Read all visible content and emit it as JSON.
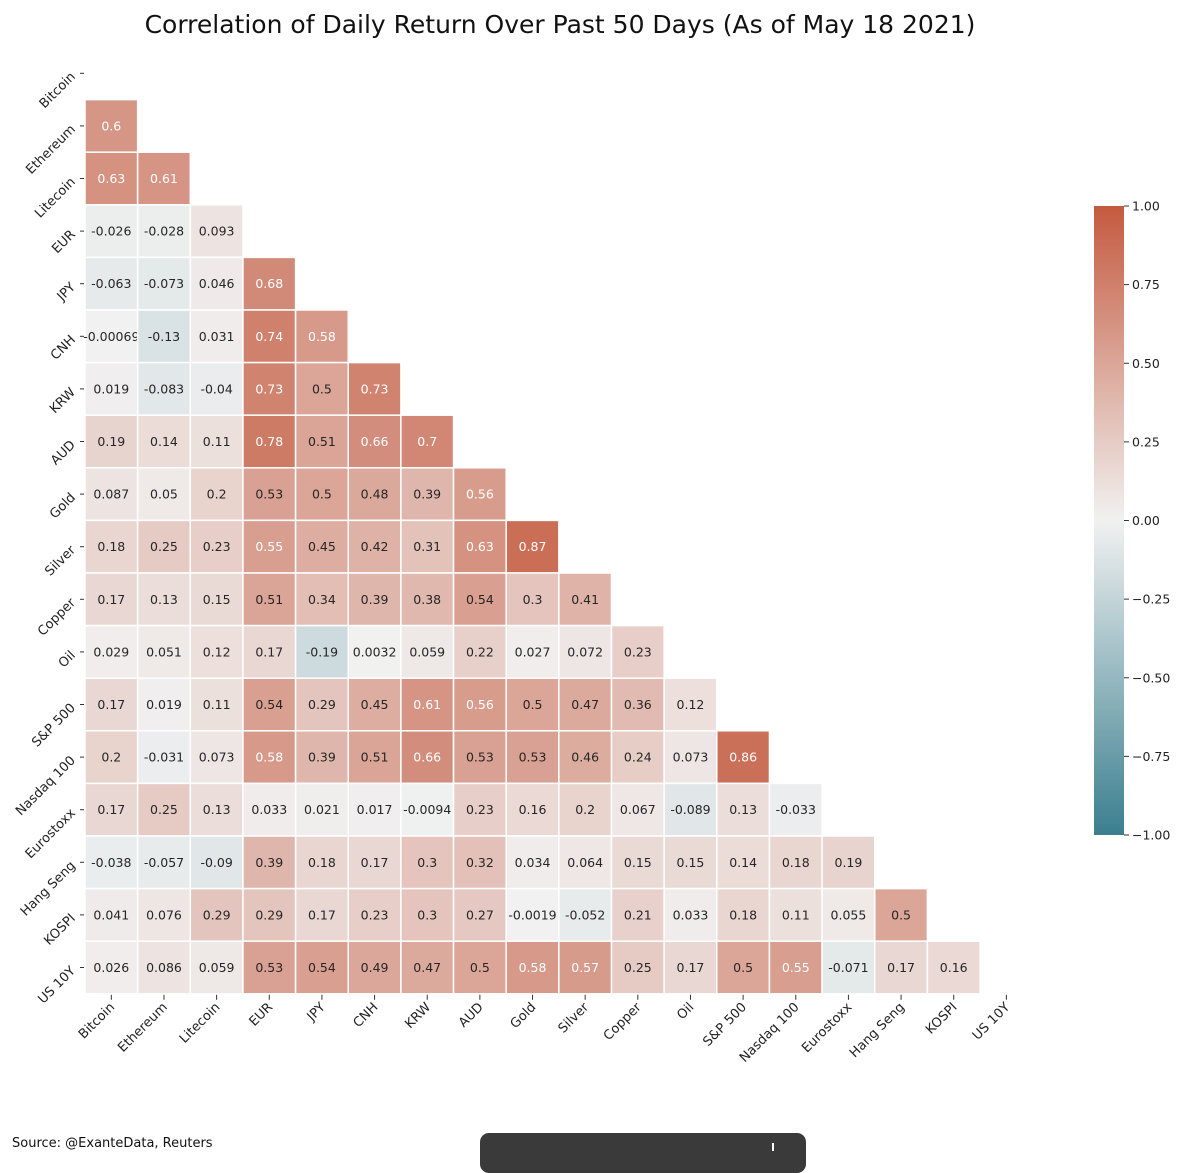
{
  "chart_data": {
    "type": "heatmap",
    "title": "Correlation of Daily Return Over Past 50 Days (As of May 18 2021)",
    "labels": [
      "Bitcoin",
      "Ethereum",
      "Litecoin",
      "EUR",
      "JPY",
      "CNH",
      "KRW",
      "AUD",
      "Gold",
      "Silver",
      "Copper",
      "Oil",
      "S&P 500",
      "Nasdaq 100",
      "Eurostoxx",
      "Hang Seng",
      "KOSPI",
      "US 10Y"
    ],
    "matrix_lower_triangle": [
      [],
      [
        "0.6"
      ],
      [
        "0.63",
        "0.61"
      ],
      [
        "-0.026",
        "-0.028",
        "0.093"
      ],
      [
        "-0.063",
        "-0.073",
        "0.046",
        "0.68"
      ],
      [
        "-0.00069",
        "-0.13",
        "0.031",
        "0.74",
        "0.58"
      ],
      [
        "0.019",
        "-0.083",
        "-0.04",
        "0.73",
        "0.5",
        "0.73"
      ],
      [
        "0.19",
        "0.14",
        "0.11",
        "0.78",
        "0.51",
        "0.66",
        "0.7"
      ],
      [
        "0.087",
        "0.05",
        "0.2",
        "0.53",
        "0.5",
        "0.48",
        "0.39",
        "0.56"
      ],
      [
        "0.18",
        "0.25",
        "0.23",
        "0.55",
        "0.45",
        "0.42",
        "0.31",
        "0.63",
        "0.87"
      ],
      [
        "0.17",
        "0.13",
        "0.15",
        "0.51",
        "0.34",
        "0.39",
        "0.38",
        "0.54",
        "0.3",
        "0.41"
      ],
      [
        "0.029",
        "0.051",
        "0.12",
        "0.17",
        "-0.19",
        "0.0032",
        "0.059",
        "0.22",
        "0.027",
        "0.072",
        "0.23"
      ],
      [
        "0.17",
        "0.019",
        "0.11",
        "0.54",
        "0.29",
        "0.45",
        "0.61",
        "0.56",
        "0.5",
        "0.47",
        "0.36",
        "0.12"
      ],
      [
        "0.2",
        "-0.031",
        "0.073",
        "0.58",
        "0.39",
        "0.51",
        "0.66",
        "0.53",
        "0.53",
        "0.46",
        "0.24",
        "0.073",
        "0.86"
      ],
      [
        "0.17",
        "0.25",
        "0.13",
        "0.033",
        "0.021",
        "0.017",
        "-0.0094",
        "0.23",
        "0.16",
        "0.2",
        "0.067",
        "-0.089",
        "0.13",
        "-0.033"
      ],
      [
        "-0.038",
        "-0.057",
        "-0.09",
        "0.39",
        "0.18",
        "0.17",
        "0.3",
        "0.32",
        "0.034",
        "0.064",
        "0.15",
        "0.15",
        "0.14",
        "0.18",
        "0.19"
      ],
      [
        "0.041",
        "0.076",
        "0.29",
        "0.29",
        "0.17",
        "0.23",
        "0.3",
        "0.27",
        "-0.0019",
        "-0.052",
        "0.21",
        "0.033",
        "0.18",
        "0.11",
        "0.055",
        "0.5"
      ],
      [
        "0.026",
        "0.086",
        "0.059",
        "0.53",
        "0.54",
        "0.49",
        "0.47",
        "0.5",
        "0.58",
        "0.57",
        "0.25",
        "0.17",
        "0.5",
        "0.55",
        "-0.071",
        "0.17",
        "0.16"
      ]
    ],
    "colorbar": {
      "range": [
        -1.0,
        1.0
      ],
      "ticks": [
        "1.00",
        "0.75",
        "0.50",
        "0.25",
        "0.00",
        "−0.25",
        "−0.50",
        "−0.75",
        "−1.00"
      ],
      "colors": {
        "negative": "#3b7f8f",
        "neutral": "#f1f1f1",
        "positive": "#c45a3f"
      }
    }
  },
  "footer": {
    "source": "Source: @ExanteData, Reuters"
  }
}
